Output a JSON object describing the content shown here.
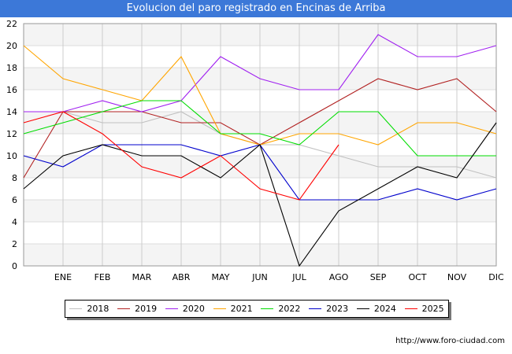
{
  "title": "Evolucion del paro registrado en Encinas de Arriba",
  "source": "http://www.foro-ciudad.com",
  "chart_data": {
    "type": "line",
    "categories": [
      "",
      "ENE",
      "FEB",
      "MAR",
      "ABR",
      "MAY",
      "JUN",
      "JUL",
      "AGO",
      "SEP",
      "OCT",
      "NOV",
      "DIC"
    ],
    "ylim": [
      0,
      22
    ],
    "yticks": [
      0,
      2,
      4,
      6,
      8,
      10,
      12,
      14,
      16,
      18,
      20,
      22
    ],
    "grid": true,
    "legend_position": "bottom",
    "series": [
      {
        "name": "2018",
        "color": "#c0c0c0",
        "values": [
          14,
          14,
          13,
          13,
          14,
          12,
          11,
          11,
          10,
          9,
          9,
          9,
          8
        ]
      },
      {
        "name": "2019",
        "color": "#b22222",
        "values": [
          8,
          14,
          14,
          14,
          13,
          13,
          11,
          13,
          15,
          17,
          16,
          17,
          14
        ]
      },
      {
        "name": "2020",
        "color": "#a020f0",
        "values": [
          14,
          14,
          15,
          14,
          15,
          19,
          17,
          16,
          16,
          21,
          19,
          19,
          20
        ]
      },
      {
        "name": "2021",
        "color": "#ffa500",
        "values": [
          20,
          17,
          16,
          15,
          19,
          12,
          11,
          12,
          12,
          11,
          13,
          13,
          12
        ]
      },
      {
        "name": "2022",
        "color": "#00dd00",
        "values": [
          12,
          13,
          14,
          15,
          15,
          12,
          12,
          11,
          14,
          14,
          10,
          10,
          10
        ]
      },
      {
        "name": "2023",
        "color": "#0000cc",
        "values": [
          10,
          9,
          11,
          11,
          11,
          10,
          11,
          6,
          6,
          6,
          7,
          6,
          7
        ]
      },
      {
        "name": "2024",
        "color": "#000000",
        "values": [
          7,
          10,
          11,
          10,
          10,
          8,
          11,
          0,
          5,
          7,
          9,
          8,
          13
        ]
      },
      {
        "name": "2025",
        "color": "#ff0000",
        "values": [
          13,
          14,
          12,
          9,
          8,
          10,
          7,
          6,
          11,
          null,
          null,
          null,
          null
        ]
      }
    ]
  }
}
